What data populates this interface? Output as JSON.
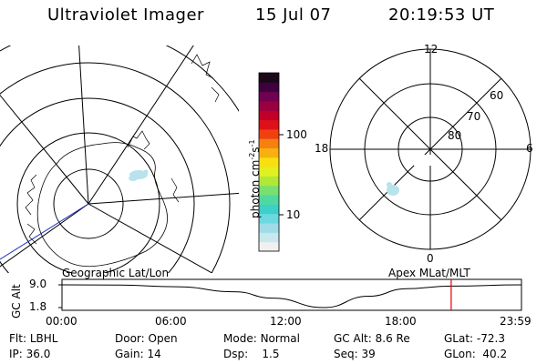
{
  "header": {
    "title": "Ultraviolet Imager",
    "date": "15 Jul 07",
    "time": "20:19:53 UT"
  },
  "colorbar": {
    "label": "photon cm",
    "label_sup1": "-2",
    "label_mid": "s",
    "label_sup2": "-1",
    "ticks": [
      "100",
      "10"
    ],
    "colors": [
      "#f0f0f0",
      "#c8e8ee",
      "#a0dce8",
      "#6cd8e0",
      "#3cd0c8",
      "#50d8a0",
      "#78e070",
      "#b0e838",
      "#e0f020",
      "#f8e010",
      "#f8b010",
      "#f88010",
      "#f04010",
      "#e01018",
      "#c00028",
      "#980040",
      "#700050",
      "#400040",
      "#1a0818"
    ]
  },
  "left_map": {
    "caption": "Geographic Lat/Lon"
  },
  "right_polar": {
    "caption": "Apex MLat/MLT",
    "hour_labels": {
      "top": "12",
      "left": "18",
      "right": "6",
      "bottom": "0"
    },
    "lat_labels": [
      "60",
      "70",
      "80"
    ]
  },
  "altitude_plot": {
    "ylabel": "GC Alt",
    "ytick_top": "9.0",
    "ytick_bottom": "1.8",
    "xticks": [
      "00:00",
      "06:00",
      "12:00",
      "18:00",
      "23:59"
    ],
    "marker_color": "#e00000"
  },
  "chart_data": {
    "type": "line",
    "title": "GC Alt",
    "xlabel": "",
    "ylabel": "GC Alt",
    "x": [
      "00:00",
      "03:00",
      "06:00",
      "09:00",
      "11:00",
      "13:40",
      "16:00",
      "18:00",
      "20:19",
      "23:59"
    ],
    "series": [
      {
        "values": [
          9.0,
          8.9,
          8.4,
          6.8,
          4.8,
          1.8,
          5.4,
          7.8,
          8.6,
          9.0
        ]
      }
    ],
    "ylim": [
      1.8,
      9.0
    ],
    "marker_time": "20:19"
  },
  "info": {
    "row1": [
      {
        "label": "Flt:",
        "value": "LBHL"
      },
      {
        "label": "Door:",
        "value": "Open"
      },
      {
        "label": "Mode:",
        "value": "Normal"
      },
      {
        "label": "GC Alt:",
        "value": "8.6 Re"
      },
      {
        "label": "GLat:",
        "value": "-72.3"
      }
    ],
    "row2": [
      {
        "label": "IP:",
        "value": "36.0"
      },
      {
        "label": "Gain:",
        "value": "14"
      },
      {
        "label": "Dsp:",
        "value": "1.5"
      },
      {
        "label": "Seq:",
        "value": "39"
      },
      {
        "label": "GLon:",
        "value": "40.2"
      }
    ]
  }
}
